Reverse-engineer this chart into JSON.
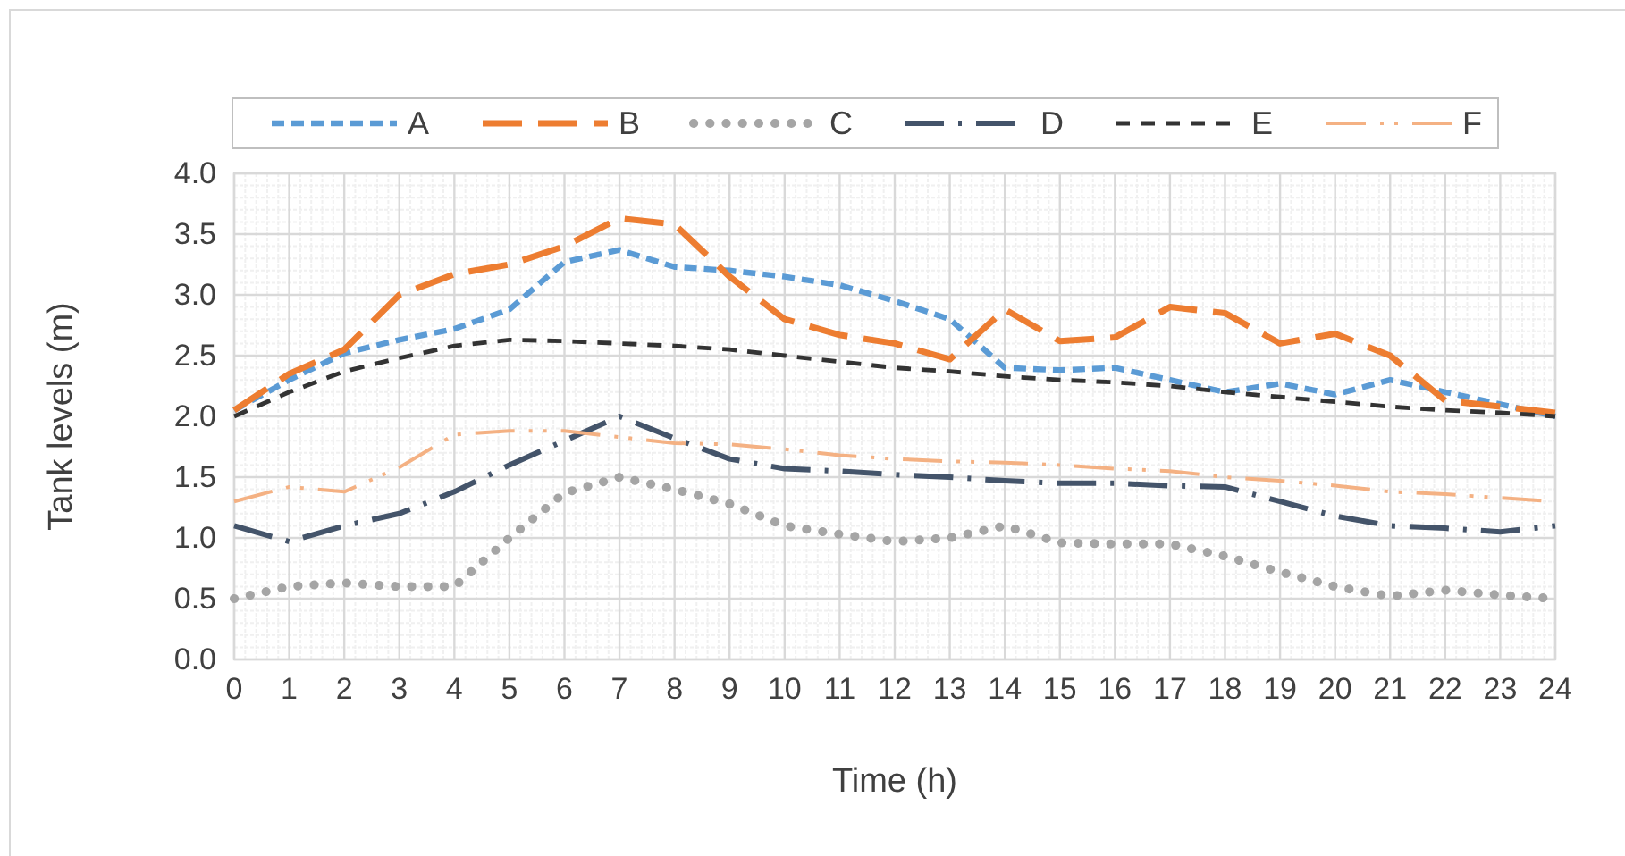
{
  "chart_data": {
    "type": "line",
    "xlabel": "Time (h)",
    "ylabel": "Tank levels (m)",
    "x": [
      0,
      1,
      2,
      3,
      4,
      5,
      6,
      7,
      8,
      9,
      10,
      11,
      12,
      13,
      14,
      15,
      16,
      17,
      18,
      19,
      20,
      21,
      22,
      23,
      24
    ],
    "xlim": [
      0,
      24
    ],
    "xticks": [
      0,
      1,
      2,
      3,
      4,
      5,
      6,
      7,
      8,
      9,
      10,
      11,
      12,
      13,
      14,
      15,
      16,
      17,
      18,
      19,
      20,
      21,
      22,
      23,
      24
    ],
    "ylim": [
      0,
      4
    ],
    "yticks": [
      {
        "value": 0,
        "label": "0.0"
      },
      {
        "value": 0.5,
        "label": "0.5"
      },
      {
        "value": 1,
        "label": "1.0"
      },
      {
        "value": 1.5,
        "label": "1.5"
      },
      {
        "value": 2,
        "label": "2.0"
      },
      {
        "value": 2.5,
        "label": "2.5"
      },
      {
        "value": 3,
        "label": "3.0"
      },
      {
        "value": 3.5,
        "label": "3.5"
      },
      {
        "value": 4,
        "label": "4.0"
      }
    ],
    "grid": true,
    "legend": "top",
    "marker": "none",
    "series": [
      {
        "name": "A",
        "color": "#5b9bd5",
        "line_style": "dashed",
        "values": [
          2.05,
          2.3,
          2.52,
          2.63,
          2.72,
          2.88,
          3.27,
          3.37,
          3.23,
          3.2,
          3.15,
          3.08,
          2.95,
          2.8,
          2.4,
          2.38,
          2.4,
          2.3,
          2.2,
          2.27,
          2.18,
          2.3,
          2.2,
          2.1,
          2.0
        ]
      },
      {
        "name": "B",
        "color": "#ed7d31",
        "line_style": "dashed",
        "values": [
          2.05,
          2.35,
          2.55,
          3.0,
          3.17,
          3.25,
          3.4,
          3.63,
          3.58,
          3.15,
          2.8,
          2.67,
          2.6,
          2.47,
          2.88,
          2.62,
          2.65,
          2.9,
          2.85,
          2.6,
          2.68,
          2.5,
          2.13,
          2.08,
          2.03
        ]
      },
      {
        "name": "C",
        "color": "#a5a5a5",
        "line_style": "dotted",
        "values": [
          0.5,
          0.6,
          0.63,
          0.6,
          0.6,
          1.0,
          1.37,
          1.5,
          1.4,
          1.28,
          1.1,
          1.03,
          0.97,
          1.0,
          1.1,
          0.96,
          0.95,
          0.95,
          0.85,
          0.72,
          0.6,
          0.52,
          0.57,
          0.53,
          0.5
        ]
      },
      {
        "name": "D",
        "color": "#44546a",
        "line_style": "dashed",
        "values": [
          1.1,
          0.97,
          1.1,
          1.2,
          1.38,
          1.6,
          1.8,
          2.0,
          1.82,
          1.65,
          1.57,
          1.55,
          1.52,
          1.5,
          1.47,
          1.45,
          1.45,
          1.43,
          1.42,
          1.3,
          1.18,
          1.1,
          1.08,
          1.05,
          1.1
        ]
      },
      {
        "name": "E",
        "color": "#333333",
        "line_style": "dashed",
        "values": [
          2.0,
          2.2,
          2.37,
          2.48,
          2.58,
          2.63,
          2.62,
          2.6,
          2.58,
          2.55,
          2.5,
          2.45,
          2.4,
          2.37,
          2.33,
          2.3,
          2.28,
          2.25,
          2.2,
          2.16,
          2.12,
          2.08,
          2.05,
          2.03,
          2.0
        ]
      },
      {
        "name": "F",
        "color": "#f4b183",
        "line_style": "dashed",
        "values": [
          1.3,
          1.42,
          1.38,
          1.58,
          1.85,
          1.88,
          1.88,
          1.83,
          1.78,
          1.77,
          1.73,
          1.68,
          1.65,
          1.63,
          1.62,
          1.6,
          1.57,
          1.55,
          1.5,
          1.47,
          1.43,
          1.38,
          1.36,
          1.33,
          1.3
        ]
      }
    ]
  }
}
